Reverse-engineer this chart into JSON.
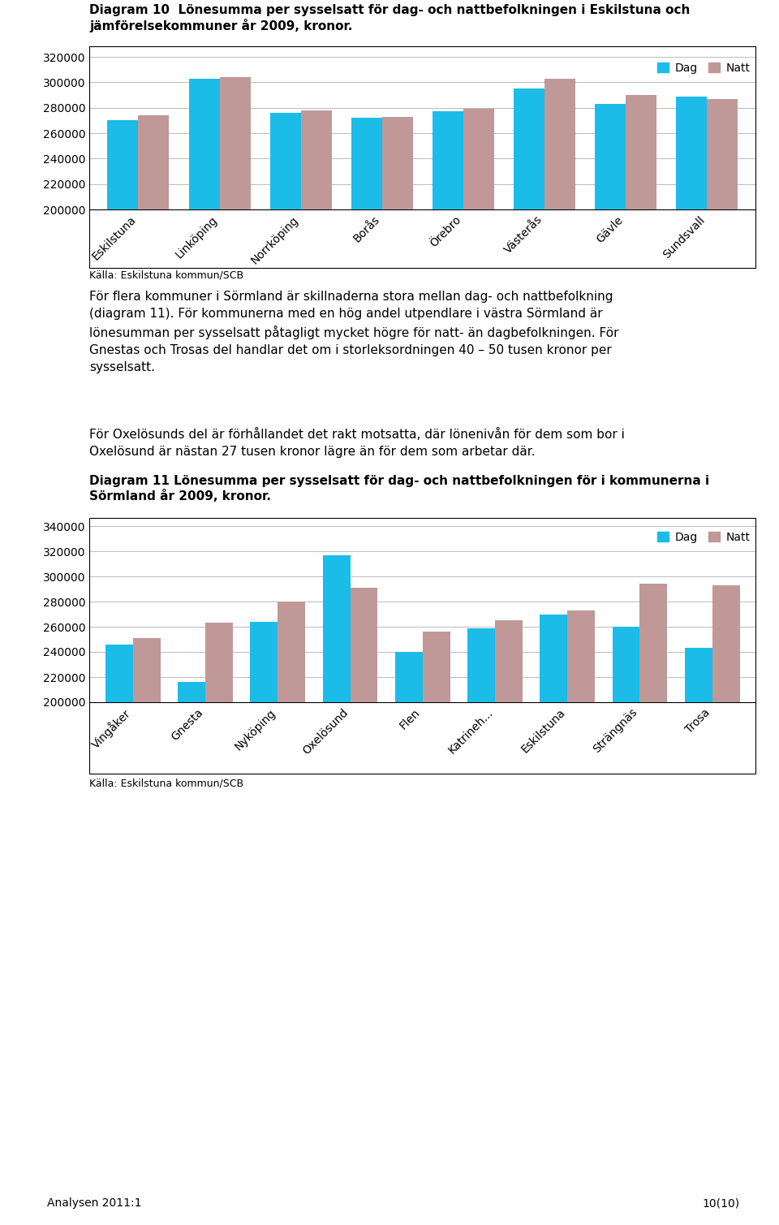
{
  "title1": "Diagram 10  Lönesumma per sysselsatt för dag- och nattbefolkningen i Eskilstuna och\njämförelsekommuner år 2009, kronor.",
  "title2": "Diagram 11 Lönesumma per sysselsatt för dag- och nattbefolkningen för i kommunerna i\nSörmland år 2009, kronor.",
  "source_label": "Källa: Eskilstuna kommun/SCB",
  "body_text1": "För flera kommuner i Sörmland är skillnaderna stora mellan dag- och nattbefolkning\n(diagram 11). För kommunerna med en hög andel utpendlare i västra Sörmland är\nlönesumman per sysselsatt påtagligt mycket högre för natt- än dagbefolkningen. För\nGnestas och Trosas del handlar det om i storleksordningen 40 – 50 tusen kronor per\nsysselsatt.",
  "body_text2": "För Oxelösunds del är förhållandet det rakt motsatta, där lönenivån för dem som bor i\nOxelösund är nästan 27 tusen kronor lägre än för dem som arbetar där.",
  "footer_left": "Analysen 2011:1",
  "footer_right": "10(10)",
  "chart1": {
    "categories": [
      "Eskilstuna",
      "Linköping",
      "Norrköping",
      "Borås",
      "Örebro",
      "Västerås",
      "Gävle",
      "Sundsvall"
    ],
    "dag": [
      270000,
      303000,
      276000,
      272000,
      277000,
      295000,
      283000,
      289000
    ],
    "natt": [
      274000,
      304000,
      278000,
      273000,
      279000,
      303000,
      290000,
      287000
    ],
    "ylim": [
      200000,
      320000
    ],
    "yticks": [
      200000,
      220000,
      240000,
      260000,
      280000,
      300000,
      320000
    ]
  },
  "chart2": {
    "categories": [
      "Vingåker",
      "Gnesta",
      "Nyköping",
      "Oxelösund",
      "Flen",
      "Katrineh...",
      "Eskilstuna",
      "Strängnäs",
      "Trosa"
    ],
    "dag": [
      246000,
      216000,
      264000,
      317000,
      240000,
      259000,
      270000,
      260000,
      243000
    ],
    "natt": [
      251000,
      263000,
      280000,
      291000,
      256000,
      265000,
      273000,
      294000,
      293000
    ],
    "ylim": [
      200000,
      340000
    ],
    "yticks": [
      200000,
      220000,
      240000,
      260000,
      280000,
      300000,
      320000,
      340000
    ]
  },
  "dag_color": "#1BBCE8",
  "natt_color": "#C09898",
  "bar_width": 0.38,
  "legend_dag": "Dag",
  "legend_natt": "Natt",
  "background_color": "#FFFFFF",
  "grid_color": "#BBBBBB",
  "text_color": "#000000"
}
